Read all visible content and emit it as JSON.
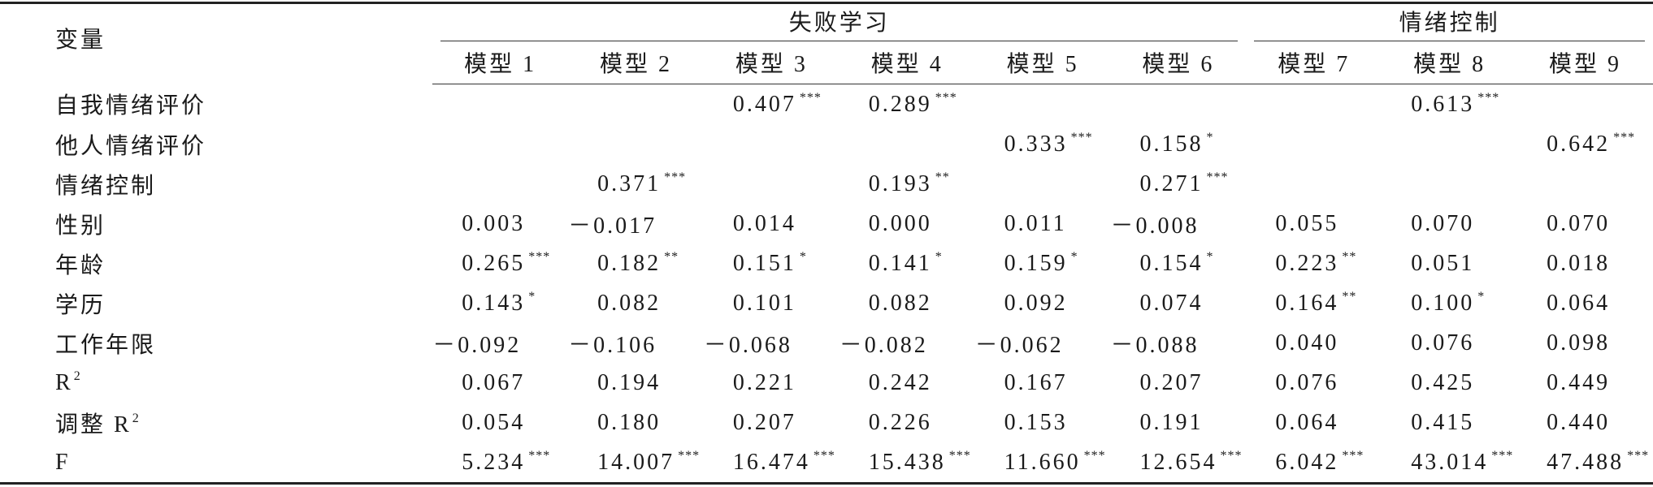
{
  "table": {
    "header": {
      "variable": "变量",
      "groups": [
        {
          "title": "失败学习",
          "span": 6
        },
        {
          "title": "情绪控制",
          "span": 3
        }
      ],
      "models": [
        "模型 1",
        "模型 2",
        "模型 3",
        "模型 4",
        "模型 5",
        "模型 6",
        "模型 7",
        "模型 8",
        "模型 9"
      ]
    },
    "rows": [
      {
        "label": "自我情绪评价",
        "cells": [
          null,
          null,
          {
            "v": "0.407",
            "sig": "***"
          },
          {
            "v": "0.289",
            "sig": "***"
          },
          null,
          null,
          null,
          {
            "v": "0.613",
            "sig": "***"
          },
          null
        ]
      },
      {
        "label": "他人情绪评价",
        "cells": [
          null,
          null,
          null,
          null,
          {
            "v": "0.333",
            "sig": "***"
          },
          {
            "v": "0.158",
            "sig": "*"
          },
          null,
          null,
          {
            "v": "0.642",
            "sig": "***"
          }
        ]
      },
      {
        "label": "情绪控制",
        "cells": [
          null,
          {
            "v": "0.371",
            "sig": "***"
          },
          null,
          {
            "v": "0.193",
            "sig": "**"
          },
          null,
          {
            "v": "0.271",
            "sig": "***"
          },
          null,
          null,
          null
        ]
      },
      {
        "label": "性别",
        "cells": [
          {
            "v": "0.003"
          },
          {
            "v": "－0.017"
          },
          {
            "v": "0.014"
          },
          {
            "v": "0.000"
          },
          {
            "v": "0.011"
          },
          {
            "v": "－0.008"
          },
          {
            "v": "0.055"
          },
          {
            "v": "0.070"
          },
          {
            "v": "0.070"
          }
        ]
      },
      {
        "label": "年龄",
        "cells": [
          {
            "v": "0.265",
            "sig": "***"
          },
          {
            "v": "0.182",
            "sig": "**"
          },
          {
            "v": "0.151",
            "sig": "*"
          },
          {
            "v": "0.141",
            "sig": "*"
          },
          {
            "v": "0.159",
            "sig": "*"
          },
          {
            "v": "0.154",
            "sig": "*"
          },
          {
            "v": "0.223",
            "sig": "**"
          },
          {
            "v": "0.051"
          },
          {
            "v": "0.018"
          }
        ]
      },
      {
        "label": "学历",
        "cells": [
          {
            "v": "0.143",
            "sig": "*"
          },
          {
            "v": "0.082"
          },
          {
            "v": "0.101"
          },
          {
            "v": "0.082"
          },
          {
            "v": "0.092"
          },
          {
            "v": "0.074"
          },
          {
            "v": "0.164",
            "sig": "**"
          },
          {
            "v": "0.100",
            "sig": "*"
          },
          {
            "v": "0.064"
          }
        ]
      },
      {
        "label": "工作年限",
        "cells": [
          {
            "v": "－0.092"
          },
          {
            "v": "－0.106"
          },
          {
            "v": "－0.068"
          },
          {
            "v": "－0.082"
          },
          {
            "v": "－0.062"
          },
          {
            "v": "－0.088"
          },
          {
            "v": "0.040"
          },
          {
            "v": "0.076"
          },
          {
            "v": "0.098"
          }
        ]
      },
      {
        "label": "R",
        "sup": "2",
        "cells": [
          {
            "v": "0.067"
          },
          {
            "v": "0.194"
          },
          {
            "v": "0.221"
          },
          {
            "v": "0.242"
          },
          {
            "v": "0.167"
          },
          {
            "v": "0.207"
          },
          {
            "v": "0.076"
          },
          {
            "v": "0.425"
          },
          {
            "v": "0.449"
          }
        ]
      },
      {
        "label": "调整 R",
        "sup": "2",
        "cells": [
          {
            "v": "0.054"
          },
          {
            "v": "0.180"
          },
          {
            "v": "0.207"
          },
          {
            "v": "0.226"
          },
          {
            "v": "0.153"
          },
          {
            "v": "0.191"
          },
          {
            "v": "0.064"
          },
          {
            "v": "0.415"
          },
          {
            "v": "0.440"
          }
        ]
      },
      {
        "label": "F",
        "cells": [
          {
            "v": "5.234",
            "sig": "***"
          },
          {
            "v": "14.007",
            "sig": "***"
          },
          {
            "v": "16.474",
            "sig": "***"
          },
          {
            "v": "15.438",
            "sig": "***"
          },
          {
            "v": "11.660",
            "sig": "***"
          },
          {
            "v": "12.654",
            "sig": "***"
          },
          {
            "v": "6.042",
            "sig": "***"
          },
          {
            "v": "43.014",
            "sig": "***"
          },
          {
            "v": "47.488",
            "sig": "***"
          }
        ]
      }
    ]
  }
}
